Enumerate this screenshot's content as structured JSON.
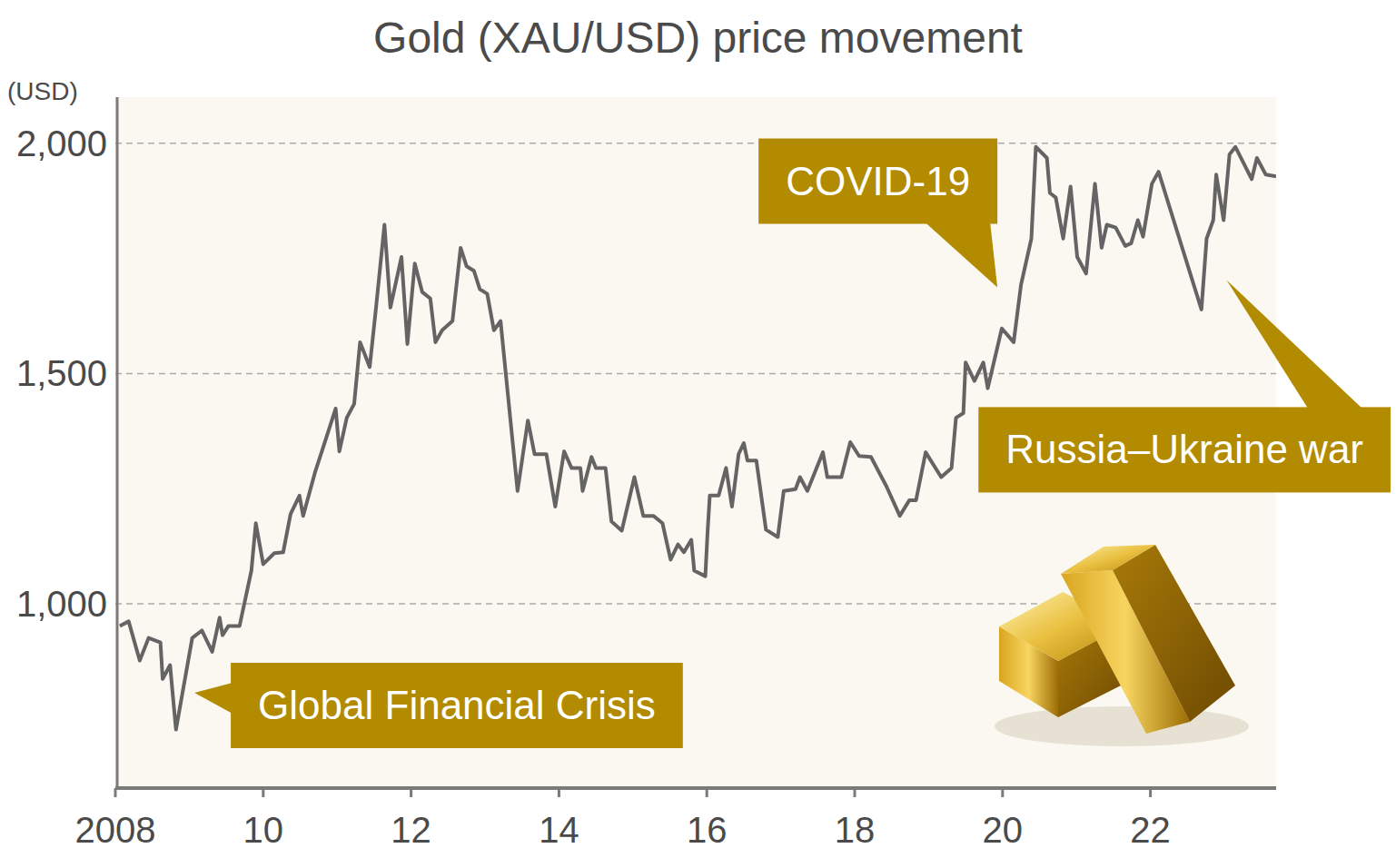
{
  "chart_data": {
    "type": "line",
    "title": "Gold (XAU/USD) price movement",
    "y_label": "(USD)",
    "x": [
      2008.06,
      2008.18,
      2008.33,
      2008.45,
      2008.61,
      2008.64,
      2008.74,
      2008.82,
      2009.04,
      2009.17,
      2009.31,
      2009.41,
      2009.45,
      2009.53,
      2009.68,
      2009.84,
      2009.9,
      2010.0,
      2010.15,
      2010.27,
      2010.37,
      2010.49,
      2010.54,
      2010.7,
      2010.85,
      2010.98,
      2011.03,
      2011.13,
      2011.23,
      2011.31,
      2011.44,
      2011.52,
      2011.64,
      2011.72,
      2011.87,
      2011.95,
      2012.05,
      2012.15,
      2012.26,
      2012.33,
      2012.42,
      2012.56,
      2012.67,
      2012.75,
      2012.85,
      2012.93,
      2013.03,
      2013.12,
      2013.21,
      2013.44,
      2013.58,
      2013.67,
      2013.83,
      2013.95,
      2014.07,
      2014.17,
      2014.29,
      2014.32,
      2014.44,
      2014.5,
      2014.63,
      2014.71,
      2014.85,
      2015.02,
      2015.14,
      2015.28,
      2015.4,
      2015.51,
      2015.61,
      2015.69,
      2015.79,
      2015.83,
      2015.98,
      2016.01,
      2016.04,
      2016.16,
      2016.26,
      2016.34,
      2016.43,
      2016.5,
      2016.55,
      2016.67,
      2016.8,
      2016.96,
      2017.04,
      2017.2,
      2017.26,
      2017.36,
      2017.57,
      2017.63,
      2017.82,
      2017.94,
      2018.06,
      2018.22,
      2018.43,
      2018.61,
      2018.74,
      2018.83,
      2018.96,
      2019.17,
      2019.31,
      2019.37,
      2019.47,
      2019.5,
      2019.62,
      2019.74,
      2019.8,
      2019.99,
      2020.15,
      2020.25,
      2020.39,
      2020.45,
      2020.6,
      2020.64,
      2020.72,
      2020.82,
      2020.92,
      2021.01,
      2021.13,
      2021.25,
      2021.34,
      2021.41,
      2021.53,
      2021.66,
      2021.74,
      2021.83,
      2021.9,
      2022.02,
      2022.11,
      2022.69,
      2022.76,
      2022.85,
      2022.89,
      2022.99,
      2023.07,
      2023.15,
      2023.37,
      2023.44,
      2023.56,
      2023.7
    ],
    "series": [
      {
        "color": "#646464",
        "values": [
          952,
          962,
          877,
          926,
          916,
          837,
          867,
          727,
          926,
          942,
          896,
          970,
          932,
          952,
          952,
          1072,
          1175,
          1086,
          1110,
          1112,
          1195,
          1235,
          1191,
          1285,
          1359,
          1424,
          1331,
          1404,
          1434,
          1568,
          1514,
          1634,
          1823,
          1643,
          1753,
          1564,
          1739,
          1677,
          1663,
          1568,
          1594,
          1614,
          1773,
          1733,
          1723,
          1683,
          1673,
          1594,
          1614,
          1245,
          1398,
          1325,
          1325,
          1211,
          1331,
          1295,
          1295,
          1245,
          1319,
          1295,
          1295,
          1179,
          1159,
          1275,
          1191,
          1191,
          1175,
          1096,
          1129,
          1112,
          1139,
          1072,
          1060,
          1155,
          1235,
          1235,
          1295,
          1211,
          1325,
          1349,
          1311,
          1311,
          1161,
          1145,
          1245,
          1249,
          1275,
          1245,
          1329,
          1275,
          1275,
          1351,
          1321,
          1319,
          1255,
          1191,
          1225,
          1225,
          1329,
          1275,
          1295,
          1404,
          1414,
          1524,
          1484,
          1524,
          1468,
          1598,
          1568,
          1693,
          1793,
          1992,
          1968,
          1892,
          1882,
          1793,
          1906,
          1753,
          1717,
          1912,
          1773,
          1823,
          1817,
          1777,
          1783,
          1833,
          1797,
          1912,
          1938,
          1639,
          1793,
          1833,
          1932,
          1833,
          1976,
          1992,
          1922,
          1968,
          1932,
          1928
        ]
      }
    ],
    "xlim": [
      2008,
      2023.7
    ],
    "xticks": [
      2008,
      {
        "value": 2010,
        "label": "10"
      },
      {
        "value": 2012,
        "label": "12"
      },
      {
        "value": 2014,
        "label": "14"
      },
      {
        "value": 2016,
        "label": "16"
      },
      {
        "value": 2018,
        "label": "18"
      },
      {
        "value": 2020,
        "label": "20"
      },
      {
        "value": 2022,
        "label": "22"
      }
    ],
    "ylim": [
      600,
      2100
    ],
    "yticks": [
      {
        "value": 1000,
        "label": "1,000"
      },
      {
        "value": 1500,
        "label": "1,500"
      },
      {
        "value": 2000,
        "label": "2,000"
      }
    ],
    "grid": true,
    "annotations": [
      {
        "text": "Global Financial Crisis",
        "x": 2009.07,
        "y": 807
      },
      {
        "text": "COVID-19",
        "x": 2019.93,
        "y": 1687
      },
      {
        "text": "Russia–Ukraine war",
        "x": 2023.03,
        "y": 1703
      }
    ]
  }
}
